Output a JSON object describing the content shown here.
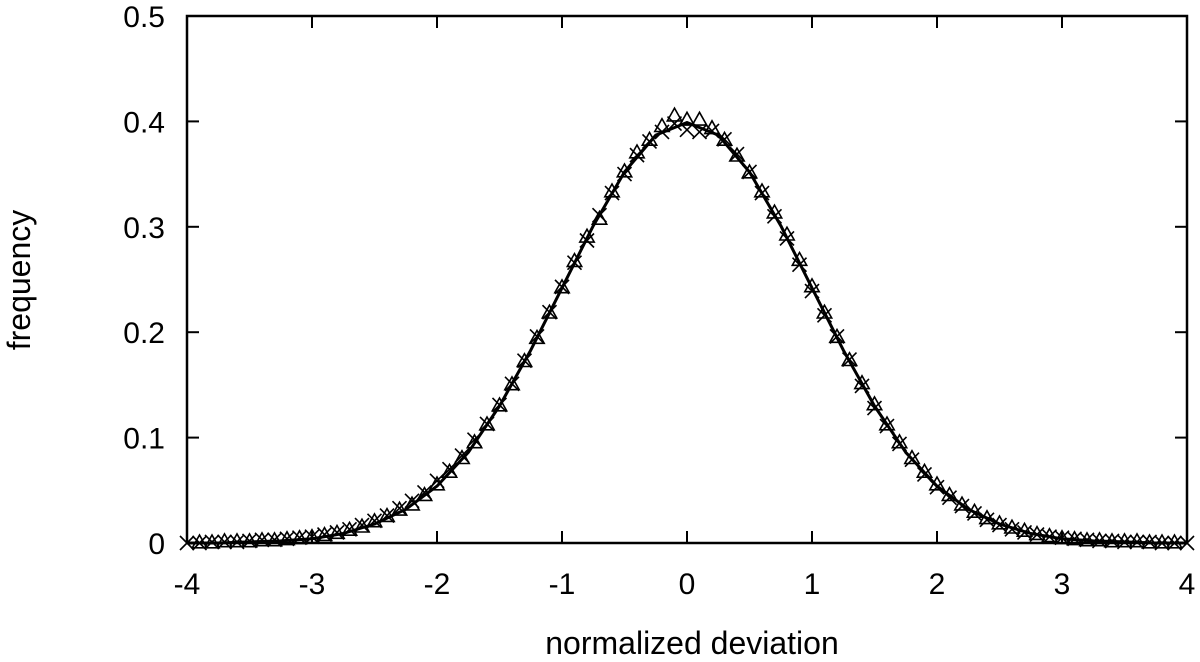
{
  "chart_data": {
    "type": "scatter",
    "title": "",
    "xlabel": "normalized deviation",
    "ylabel": "frequency",
    "xlim": [
      -4,
      4
    ],
    "ylim": [
      0,
      0.5
    ],
    "x_ticks": [
      "-4",
      "-3",
      "-2",
      "-1",
      "0",
      "1",
      "2",
      "3",
      "4"
    ],
    "y_ticks": [
      "0",
      "0.1",
      "0.2",
      "0.3",
      "0.4",
      "0.5"
    ],
    "grid": false,
    "legend": "none",
    "series": [
      {
        "marker": "triangle",
        "x": [
          -3.9,
          -3.8,
          -3.7,
          -3.6,
          -3.5,
          -3.4,
          -3.3,
          -3.2,
          -3.1,
          -3.0,
          -2.9,
          -2.8,
          -2.7,
          -2.6,
          -2.5,
          -2.4,
          -2.3,
          -2.2,
          -2.1,
          -2.0,
          -1.9,
          -1.8,
          -1.7,
          -1.6,
          -1.5,
          -1.4,
          -1.3,
          -1.2,
          -1.1,
          -1.0,
          -0.9,
          -0.8,
          -0.7,
          -0.6,
          -0.5,
          -0.4,
          -0.3,
          -0.2,
          -0.1,
          0.0,
          0.1,
          0.2,
          0.3,
          0.4,
          0.5,
          0.6,
          0.7,
          0.8,
          0.9,
          1.0,
          1.1,
          1.2,
          1.3,
          1.4,
          1.5,
          1.6,
          1.7,
          1.8,
          1.9,
          2.0,
          2.1,
          2.2,
          2.3,
          2.4,
          2.5,
          2.6,
          2.7,
          2.8,
          2.9,
          3.0,
          3.1,
          3.2,
          3.3,
          3.4,
          3.5,
          3.6,
          3.7,
          3.8,
          3.9
        ],
        "y": [
          0.0,
          0.0,
          0.001,
          0.001,
          0.001,
          0.002,
          0.002,
          0.003,
          0.004,
          0.005,
          0.007,
          0.009,
          0.012,
          0.015,
          0.02,
          0.025,
          0.031,
          0.036,
          0.045,
          0.055,
          0.067,
          0.08,
          0.095,
          0.112,
          0.13,
          0.15,
          0.172,
          0.194,
          0.218,
          0.242,
          0.267,
          0.29,
          0.307,
          0.333,
          0.352,
          0.37,
          0.382,
          0.395,
          0.405,
          0.401,
          0.401,
          0.393,
          0.382,
          0.367,
          0.351,
          0.333,
          0.313,
          0.292,
          0.268,
          0.243,
          0.218,
          0.195,
          0.173,
          0.151,
          0.131,
          0.112,
          0.095,
          0.08,
          0.067,
          0.055,
          0.045,
          0.036,
          0.029,
          0.023,
          0.018,
          0.014,
          0.011,
          0.008,
          0.006,
          0.004,
          0.003,
          0.002,
          0.002,
          0.001,
          0.001,
          0.001,
          0.0,
          0.0,
          0.0
        ]
      },
      {
        "marker": "cross",
        "x": [
          -4.0,
          -3.9,
          -3.8,
          -3.7,
          -3.6,
          -3.5,
          -3.4,
          -3.3,
          -3.2,
          -3.1,
          -3.0,
          -2.9,
          -2.8,
          -2.7,
          -2.6,
          -2.5,
          -2.4,
          -2.3,
          -2.2,
          -2.1,
          -2.0,
          -1.9,
          -1.8,
          -1.7,
          -1.6,
          -1.5,
          -1.4,
          -1.3,
          -1.2,
          -1.1,
          -1.0,
          -0.9,
          -0.8,
          -0.7,
          -0.6,
          -0.5,
          -0.4,
          -0.3,
          -0.2,
          -0.1,
          0.0,
          0.1,
          0.2,
          0.3,
          0.4,
          0.5,
          0.6,
          0.7,
          0.8,
          0.9,
          1.0,
          1.1,
          1.2,
          1.3,
          1.4,
          1.5,
          1.6,
          1.7,
          1.8,
          1.9,
          2.0,
          2.1,
          2.2,
          2.3,
          2.4,
          2.5,
          2.6,
          2.7,
          2.8,
          2.9,
          3.0,
          3.1,
          3.2,
          3.3,
          3.4,
          3.5,
          3.6,
          3.7,
          3.8,
          3.9,
          4.0
        ],
        "y": [
          0.0,
          0.0,
          0.001,
          0.001,
          0.001,
          0.002,
          0.003,
          0.003,
          0.004,
          0.005,
          0.006,
          0.008,
          0.01,
          0.013,
          0.017,
          0.021,
          0.026,
          0.033,
          0.04,
          0.048,
          0.059,
          0.07,
          0.083,
          0.098,
          0.113,
          0.131,
          0.151,
          0.173,
          0.196,
          0.219,
          0.243,
          0.266,
          0.287,
          0.311,
          0.332,
          0.35,
          0.368,
          0.381,
          0.39,
          0.398,
          0.392,
          0.39,
          0.391,
          0.383,
          0.369,
          0.352,
          0.332,
          0.31,
          0.289,
          0.264,
          0.239,
          0.216,
          0.196,
          0.174,
          0.149,
          0.128,
          0.111,
          0.094,
          0.079,
          0.065,
          0.053,
          0.043,
          0.035,
          0.028,
          0.022,
          0.017,
          0.013,
          0.01,
          0.008,
          0.006,
          0.005,
          0.004,
          0.003,
          0.002,
          0.002,
          0.001,
          0.001,
          0.001,
          0.0,
          0.0,
          0.0
        ]
      },
      {
        "marker": "line",
        "x": [
          -4.0,
          -3.75,
          -3.5,
          -3.25,
          -3.0,
          -2.75,
          -2.5,
          -2.25,
          -2.0,
          -1.75,
          -1.5,
          -1.25,
          -1.0,
          -0.75,
          -0.5,
          -0.25,
          0.0,
          0.25,
          0.5,
          0.75,
          1.0,
          1.25,
          1.5,
          1.75,
          2.0,
          2.25,
          2.5,
          2.75,
          3.0,
          3.25,
          3.5,
          3.75,
          4.0
        ],
        "y": [
          0.0,
          0.0,
          0.001,
          0.002,
          0.004,
          0.009,
          0.018,
          0.032,
          0.054,
          0.086,
          0.13,
          0.183,
          0.242,
          0.301,
          0.352,
          0.387,
          0.399,
          0.387,
          0.352,
          0.301,
          0.242,
          0.183,
          0.13,
          0.086,
          0.054,
          0.032,
          0.018,
          0.009,
          0.004,
          0.002,
          0.001,
          0.0,
          0.0
        ]
      }
    ]
  }
}
